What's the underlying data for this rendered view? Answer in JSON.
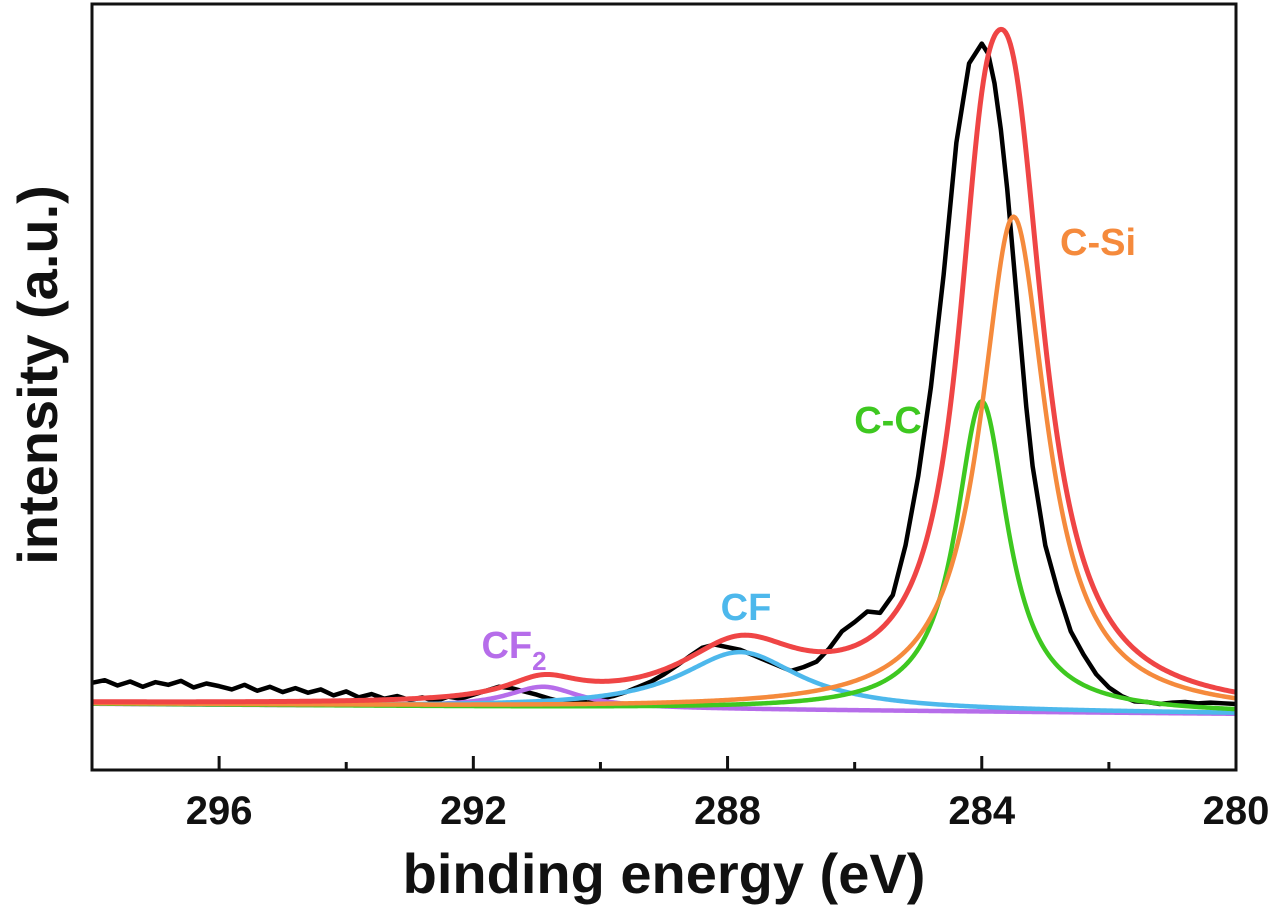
{
  "chart_data": {
    "type": "line",
    "title": "",
    "xlabel": "binding energy (eV)",
    "ylabel": "intensity (a.u.)",
    "x_reversed": true,
    "xlim": [
      298,
      280
    ],
    "ylim": [
      -0.1,
      1.06
    ],
    "xticks": [
      {
        "value": 296,
        "label": "296"
      },
      {
        "value": 292,
        "label": "292"
      },
      {
        "value": 288,
        "label": "288"
      },
      {
        "value": 284,
        "label": "284"
      },
      {
        "value": 280,
        "label": "280"
      }
    ],
    "minor_xticks": [
      298,
      294,
      290,
      286,
      282
    ],
    "yticks": [],
    "grid": false,
    "baseline": {
      "start": 0.0,
      "end": -0.015
    },
    "peaks": [
      {
        "name": "CF2",
        "label": "CF",
        "label_sub": "2",
        "center": 290.9,
        "height": 0.032,
        "width": 0.7,
        "color": "#b66dea"
      },
      {
        "name": "CF",
        "label": "CF",
        "label_sub": "",
        "center": 287.8,
        "height": 0.087,
        "width": 1.15,
        "color": "#4db8ec"
      },
      {
        "name": "C-C",
        "label": "C-C",
        "label_sub": "",
        "center": 284.0,
        "height": 0.47,
        "width": 0.5,
        "color": "#3ec820"
      },
      {
        "name": "C-Si",
        "label": "C-Si",
        "label_sub": "",
        "center": 283.5,
        "height": 0.75,
        "width": 0.63,
        "color": "#f58a3c"
      }
    ],
    "series": [
      {
        "name": "raw data",
        "color": "#000000",
        "x": [
          298.0,
          297.8,
          297.6,
          297.4,
          297.2,
          297.0,
          296.8,
          296.6,
          296.4,
          296.2,
          296.0,
          295.8,
          295.6,
          295.4,
          295.2,
          295.0,
          294.8,
          294.6,
          294.4,
          294.2,
          294.0,
          293.8,
          293.6,
          293.4,
          293.2,
          293.0,
          292.8,
          292.6,
          292.4,
          292.2,
          292.0,
          291.8,
          291.6,
          291.4,
          291.2,
          291.0,
          290.8,
          290.6,
          290.4,
          290.2,
          290.0,
          289.8,
          289.6,
          289.4,
          289.2,
          289.0,
          288.8,
          288.6,
          288.4,
          288.2,
          288.0,
          287.8,
          287.6,
          287.4,
          287.2,
          287.0,
          286.8,
          286.6,
          286.4,
          286.2,
          286.0,
          285.8,
          285.6,
          285.4,
          285.2,
          285.0,
          284.8,
          284.6,
          284.4,
          284.2,
          284.0,
          283.9,
          283.8,
          283.7,
          283.6,
          283.5,
          283.4,
          283.3,
          283.2,
          283.0,
          282.8,
          282.6,
          282.4,
          282.2,
          282.0,
          281.8,
          281.6,
          281.4,
          281.2,
          281.0,
          280.8,
          280.6,
          280.4,
          280.2,
          280.0
        ],
        "values": [
          0.032,
          0.036,
          0.028,
          0.034,
          0.026,
          0.033,
          0.029,
          0.035,
          0.025,
          0.031,
          0.027,
          0.022,
          0.029,
          0.02,
          0.026,
          0.018,
          0.024,
          0.017,
          0.022,
          0.013,
          0.019,
          0.01,
          0.015,
          0.008,
          0.012,
          0.006,
          0.01,
          0.004,
          0.011,
          0.008,
          0.014,
          0.02,
          0.026,
          0.024,
          0.019,
          0.014,
          0.008,
          0.003,
          0.006,
          0.002,
          0.008,
          0.012,
          0.018,
          0.026,
          0.034,
          0.045,
          0.058,
          0.072,
          0.085,
          0.09,
          0.086,
          0.082,
          0.074,
          0.066,
          0.058,
          0.05,
          0.056,
          0.064,
          0.084,
          0.11,
          0.124,
          0.14,
          0.138,
          0.165,
          0.24,
          0.345,
          0.48,
          0.65,
          0.85,
          0.97,
          1.0,
          0.985,
          0.94,
          0.87,
          0.78,
          0.67,
          0.56,
          0.45,
          0.36,
          0.24,
          0.17,
          0.11,
          0.075,
          0.045,
          0.025,
          0.012,
          0.004,
          0.003,
          0.0,
          0.002,
          0.003,
          0.001,
          0.002,
          0.001,
          0.0
        ]
      },
      {
        "name": "envelope fit",
        "color": "#ef4545",
        "computed_from": "peaks"
      },
      {
        "name": "CF2",
        "color": "#b66dea",
        "computed_from": "peak CF2"
      },
      {
        "name": "CF",
        "color": "#4db8ec",
        "computed_from": "peak CF"
      },
      {
        "name": "C-C",
        "color": "#3ec820",
        "computed_from": "peak C-C"
      },
      {
        "name": "C-Si",
        "color": "#f58a3c",
        "computed_from": "peak C-Si"
      }
    ],
    "annotations": [
      {
        "text": "C-Si",
        "peak": "C-Si"
      },
      {
        "text": "C-C",
        "peak": "C-C"
      },
      {
        "text": "CF",
        "peak": "CF"
      },
      {
        "text": "CF2",
        "peak": "CF2"
      }
    ]
  }
}
